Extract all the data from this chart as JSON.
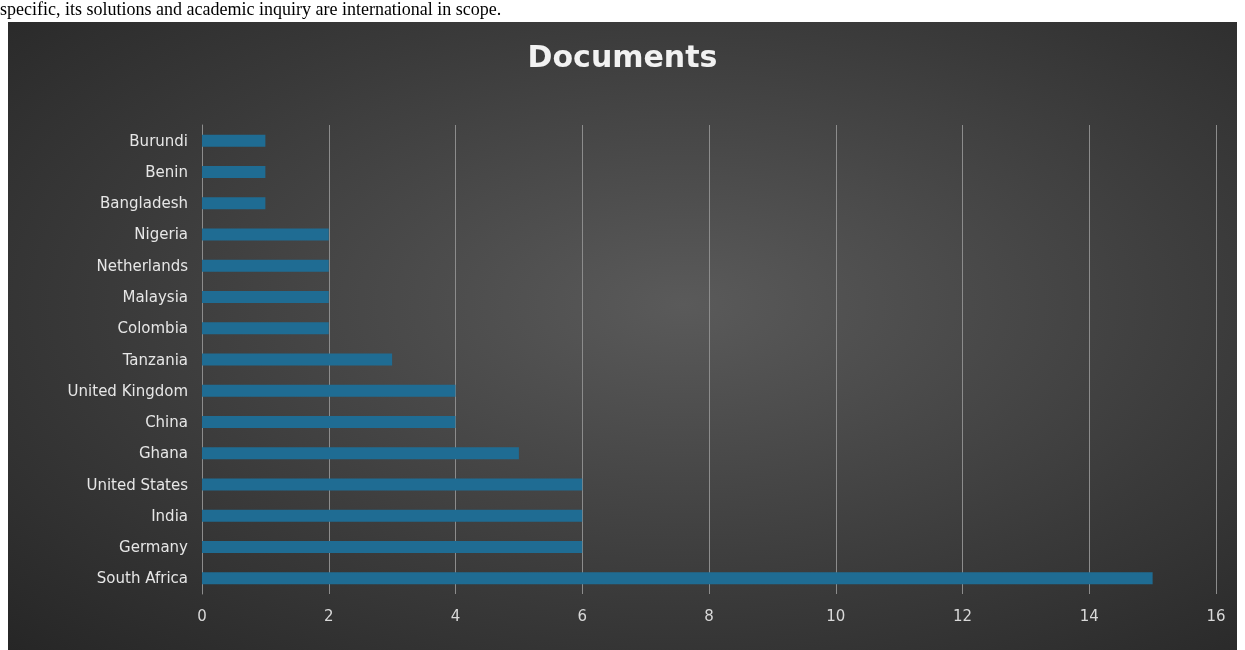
{
  "chart_data": {
    "type": "bar",
    "orientation": "horizontal",
    "title": "Documents",
    "annotations": [
      "specific, its solutions and academic inquiry are international in scope."
    ],
    "categories": [
      "Burundi",
      "Benin",
      "Bangladesh",
      "Nigeria",
      "Netherlands",
      "Malaysia",
      "Colombia",
      "Tanzania",
      "United Kingdom",
      "China",
      "Ghana",
      "United States",
      "India",
      "Germany",
      "South Africa"
    ],
    "values": [
      1,
      1,
      1,
      2,
      2,
      2,
      2,
      3,
      4,
      4,
      5,
      6,
      6,
      6,
      15
    ],
    "color": "#1f6c93",
    "xlim": [
      0,
      16
    ],
    "xticks": [
      0,
      2,
      4,
      6,
      8,
      10,
      12,
      14,
      16
    ],
    "grid": "x"
  }
}
